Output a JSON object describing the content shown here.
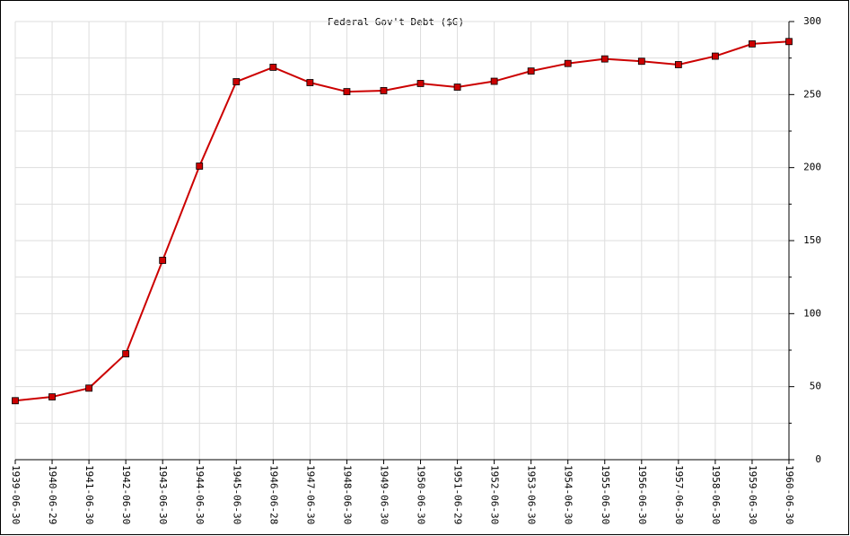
{
  "chart_data": {
    "type": "line",
    "title": "Federal Gov't Debt ($G)",
    "categories": [
      "1939-06-30",
      "1940-06-29",
      "1941-06-30",
      "1942-06-30",
      "1943-06-30",
      "1944-06-30",
      "1945-06-30",
      "1946-06-28",
      "1947-06-30",
      "1948-06-30",
      "1949-06-30",
      "1950-06-30",
      "1951-06-29",
      "1952-06-30",
      "1953-06-30",
      "1954-06-30",
      "1955-06-30",
      "1956-06-30",
      "1957-06-30",
      "1958-06-30",
      "1959-06-30",
      "1960-06-30"
    ],
    "series": [
      {
        "name": "Federal Gov't Debt ($G)",
        "color": "#cc0000",
        "values": [
          40.4,
          43.0,
          49.0,
          72.5,
          136.5,
          201.0,
          258.8,
          268.7,
          258.2,
          252.0,
          252.7,
          257.6,
          255.1,
          259.1,
          266.1,
          271.3,
          274.4,
          272.8,
          270.5,
          276.3,
          284.7,
          286.3
        ]
      }
    ],
    "ylim": [
      0,
      300
    ],
    "yticks": [
      0,
      50,
      100,
      150,
      200,
      250,
      300
    ],
    "minor_yticks": [
      25,
      75,
      125,
      175,
      225,
      275
    ],
    "grid": true
  }
}
